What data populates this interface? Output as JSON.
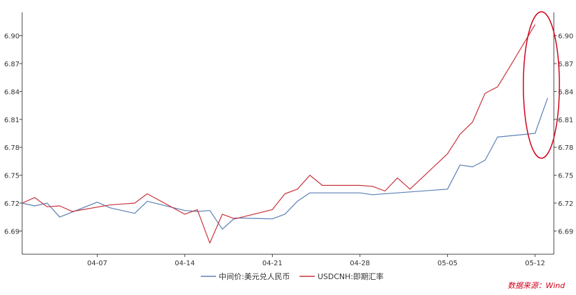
{
  "chart_data": {
    "type": "line",
    "y_ticks": [
      "6.69",
      "6.72",
      "6.75",
      "6.78",
      "6.81",
      "6.84",
      "6.87",
      "6.90"
    ],
    "ylim": [
      6.665,
      6.925
    ],
    "x_tick_labels": [
      "04-07",
      "04-14",
      "04-21",
      "04-28",
      "05-05",
      "05-12"
    ],
    "x_tick_positions": [
      6,
      13,
      20,
      27,
      34,
      41
    ],
    "xlim": [
      0,
      42.5
    ],
    "grid": false,
    "legend_position": "bottom-center",
    "series": [
      {
        "name": "中间价:美元兑人民币",
        "color": "#5b7fb5",
        "x": [
          0,
          1,
          2,
          3,
          6,
          7,
          9,
          10,
          13,
          14,
          15,
          16,
          17,
          20,
          21,
          22,
          23,
          27,
          28,
          34,
          35,
          36,
          37,
          38,
          41,
          42
        ],
        "values": [
          6.72,
          6.717,
          6.72,
          6.705,
          6.721,
          6.715,
          6.709,
          6.722,
          6.712,
          6.711,
          6.712,
          6.692,
          6.704,
          6.703,
          6.708,
          6.722,
          6.731,
          6.731,
          6.729,
          6.735,
          6.761,
          6.759,
          6.766,
          6.791,
          6.795,
          6.833
        ]
      },
      {
        "name": "USDCNH:即期汇率",
        "color": "#c8323a",
        "x": [
          0,
          1,
          2,
          3,
          4,
          7,
          8,
          9,
          10,
          13,
          14,
          15,
          16,
          17,
          20,
          21,
          22,
          23,
          24,
          27,
          28,
          29,
          30,
          31,
          34,
          35,
          36,
          37,
          38,
          39,
          41
        ],
        "values": [
          6.72,
          6.726,
          6.716,
          6.717,
          6.711,
          6.718,
          6.719,
          6.72,
          6.73,
          6.708,
          6.713,
          6.677,
          6.708,
          6.703,
          6.713,
          6.73,
          6.735,
          6.75,
          6.739,
          6.739,
          6.738,
          6.733,
          6.747,
          6.735,
          6.773,
          6.794,
          6.807,
          6.838,
          6.845,
          6.867,
          6.912
        ]
      }
    ]
  },
  "source_text": "数据来源：Wind"
}
